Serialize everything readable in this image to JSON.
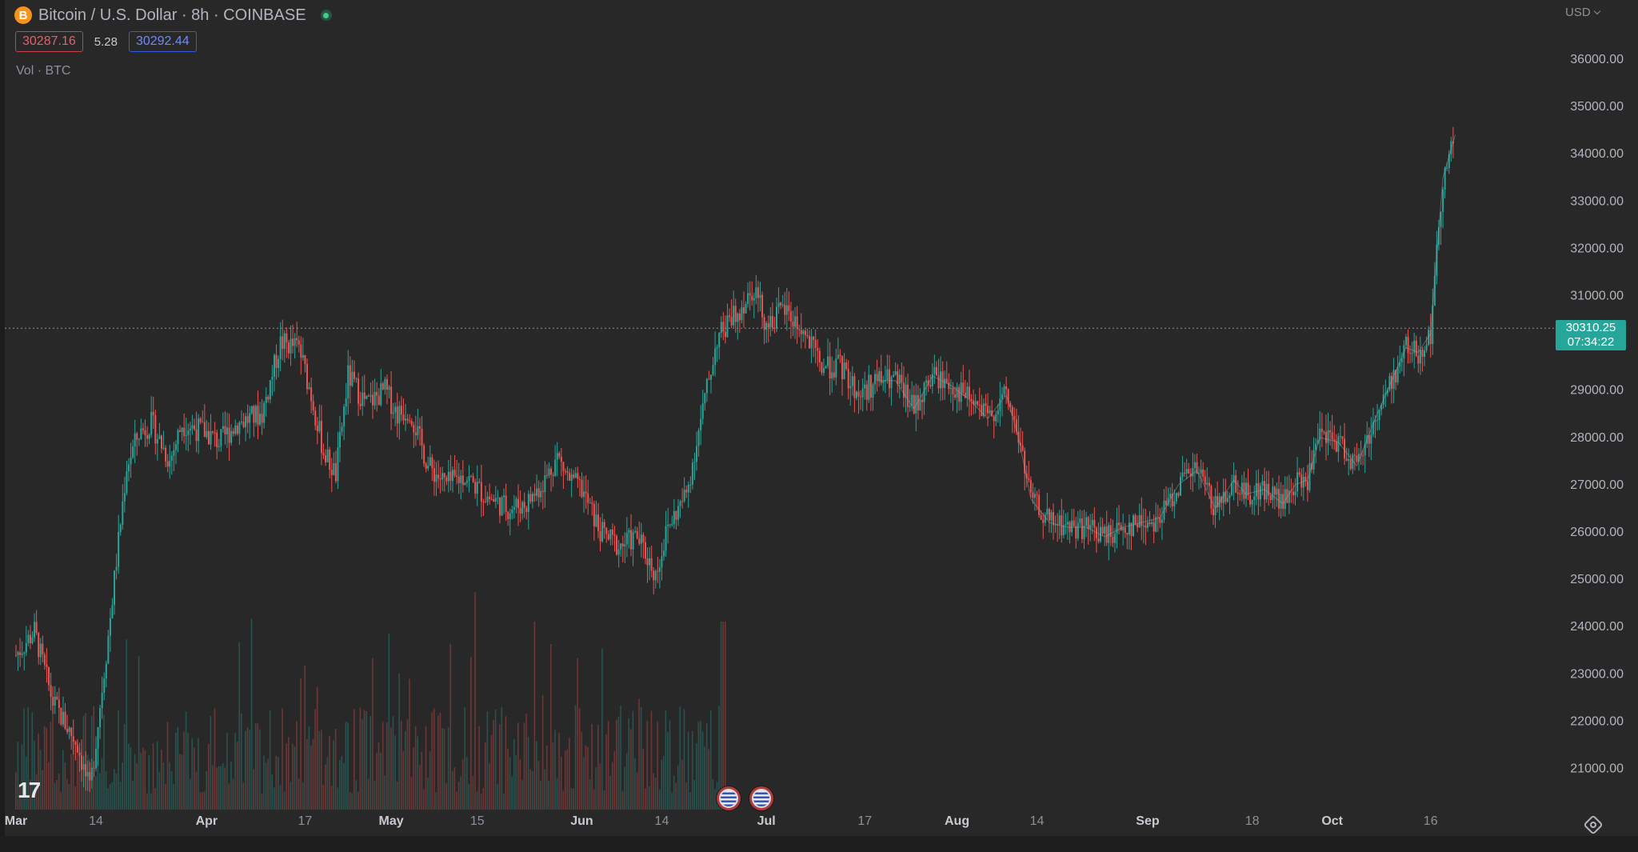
{
  "header": {
    "coin_symbol": "B",
    "title": "Bitcoin / U.S. Dollar · 8h · COINBASE",
    "bid": "30287.16",
    "spread": "5.28",
    "ask": "30292.44",
    "volume_label": "Vol · BTC",
    "currency": "USD"
  },
  "last_price": {
    "price": "30310.25",
    "countdown": "07:34:22"
  },
  "colors": {
    "up": "#26a69a",
    "down": "#ef5350",
    "background": "#282828",
    "grid_text": "#b2b5be"
  },
  "icons": [
    "bitcoin-coin-icon",
    "status-dot-icon",
    "chevron-down-icon",
    "tradingview-logo",
    "us-flag-icon",
    "settings-icon"
  ],
  "chart_data": {
    "type": "candlestick",
    "interval": "8h",
    "y_axis": {
      "ticks": [
        "21000.00",
        "22000.00",
        "23000.00",
        "24000.00",
        "25000.00",
        "26000.00",
        "27000.00",
        "28000.00",
        "29000.00",
        "30000.00",
        "31000.00",
        "32000.00",
        "33000.00",
        "34000.00",
        "35000.00",
        "36000.00"
      ],
      "ylim": [
        20200,
        36800
      ]
    },
    "x_axis": {
      "ticks": [
        "Mar",
        "14",
        "Apr",
        "17",
        "May",
        "15",
        "Jun",
        "14",
        "Jul",
        "17",
        "Aug",
        "14",
        "Sep",
        "18",
        "Oct",
        "16"
      ],
      "tick_days": [
        0,
        13,
        31,
        47,
        61,
        75,
        92,
        105,
        122,
        138,
        153,
        166,
        184,
        201,
        214,
        230
      ]
    },
    "last_price_line": 30310.25,
    "approx_close_path": [
      [
        0,
        23400
      ],
      [
        3,
        23900
      ],
      [
        6,
        22400
      ],
      [
        10,
        21500
      ],
      [
        12,
        20500
      ],
      [
        15,
        23800
      ],
      [
        18,
        27400
      ],
      [
        20,
        28100
      ],
      [
        22,
        28300
      ],
      [
        25,
        27500
      ],
      [
        27,
        28300
      ],
      [
        31,
        28100
      ],
      [
        33,
        27900
      ],
      [
        36,
        28300
      ],
      [
        40,
        28500
      ],
      [
        43,
        30000
      ],
      [
        46,
        29900
      ],
      [
        48,
        28900
      ],
      [
        50,
        27700
      ],
      [
        52,
        27200
      ],
      [
        54,
        29300
      ],
      [
        57,
        28700
      ],
      [
        60,
        29000
      ],
      [
        62,
        28500
      ],
      [
        64,
        28600
      ],
      [
        67,
        27400
      ],
      [
        70,
        27000
      ],
      [
        73,
        27200
      ],
      [
        76,
        26800
      ],
      [
        80,
        26500
      ],
      [
        83,
        26600
      ],
      [
        86,
        27100
      ],
      [
        88,
        27600
      ],
      [
        90,
        27100
      ],
      [
        92,
        26900
      ],
      [
        95,
        26000
      ],
      [
        98,
        25700
      ],
      [
        101,
        25900
      ],
      [
        104,
        25100
      ],
      [
        106,
        26100
      ],
      [
        109,
        26800
      ],
      [
        112,
        28800
      ],
      [
        114,
        30100
      ],
      [
        117,
        30600
      ],
      [
        120,
        31200
      ],
      [
        122,
        30400
      ],
      [
        125,
        30700
      ],
      [
        128,
        30200
      ],
      [
        131,
        29500
      ],
      [
        134,
        29500
      ],
      [
        137,
        28900
      ],
      [
        140,
        29200
      ],
      [
        143,
        29200
      ],
      [
        146,
        28600
      ],
      [
        149,
        29300
      ],
      [
        152,
        29100
      ],
      [
        155,
        28800
      ],
      [
        158,
        28400
      ],
      [
        161,
        28900
      ],
      [
        163,
        28000
      ],
      [
        165,
        26700
      ],
      [
        168,
        26200
      ],
      [
        171,
        26100
      ],
      [
        174,
        26100
      ],
      [
        177,
        25900
      ],
      [
        180,
        26100
      ],
      [
        183,
        26200
      ],
      [
        186,
        26300
      ],
      [
        189,
        27000
      ],
      [
        192,
        27300
      ],
      [
        195,
        26500
      ],
      [
        198,
        27100
      ],
      [
        200,
        26800
      ],
      [
        203,
        26900
      ],
      [
        206,
        26600
      ],
      [
        208,
        27000
      ],
      [
        210,
        27100
      ],
      [
        212,
        28000
      ],
      [
        215,
        27900
      ],
      [
        218,
        27400
      ],
      [
        221,
        28400
      ],
      [
        224,
        29300
      ],
      [
        226,
        29900
      ],
      [
        228,
        29800
      ],
      [
        230,
        30200
      ],
      [
        232,
        33500
      ],
      [
        234,
        34400
      ]
    ],
    "volume": {
      "label": "Vol · BTC",
      "peak_day": 115
    }
  }
}
